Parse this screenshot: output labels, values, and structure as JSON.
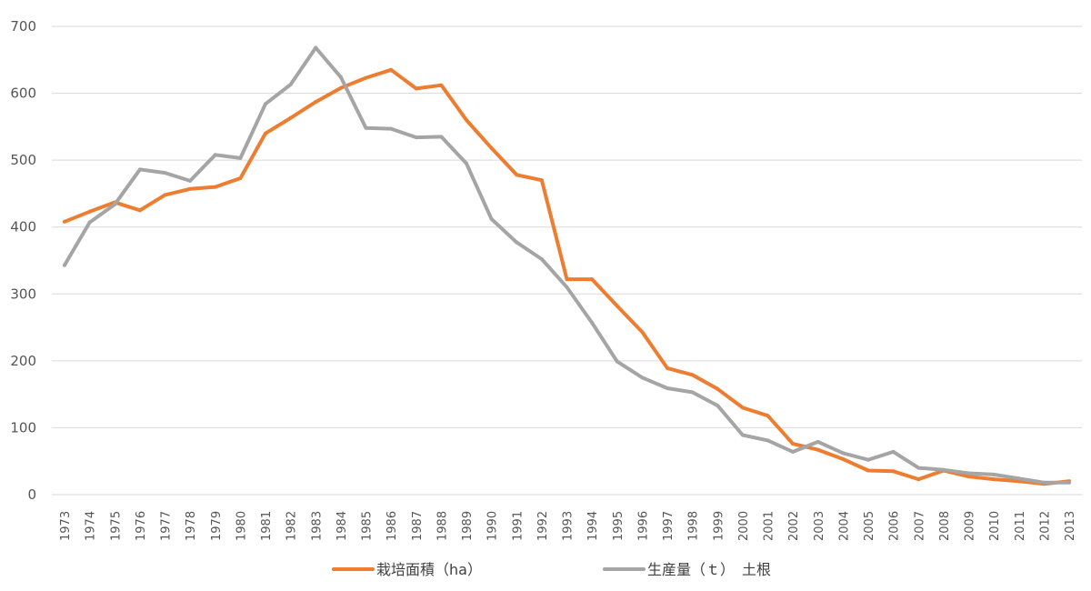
{
  "chart_data": {
    "type": "line",
    "title": "",
    "xlabel": "",
    "ylabel": "",
    "ylim": [
      0,
      700
    ],
    "yticks": [
      "0",
      "100",
      "200",
      "300",
      "400",
      "500",
      "600",
      "700"
    ],
    "categories": [
      "1973",
      "1974",
      "1975",
      "1976",
      "1977",
      "1978",
      "1979",
      "1980",
      "1981",
      "1982",
      "1983",
      "1984",
      "1985",
      "1986",
      "1987",
      "1988",
      "1989",
      "1990",
      "1991",
      "1992",
      "1993",
      "1994",
      "1995",
      "1996",
      "1997",
      "1998",
      "1999",
      "2000",
      "2001",
      "2002",
      "2003",
      "2004",
      "2005",
      "2006",
      "2007",
      "2008",
      "2009",
      "2010",
      "2011",
      "2012",
      "2013"
    ],
    "grid": true,
    "legend_position": "bottom",
    "series": [
      {
        "name": "栽培面積（ha）",
        "color": "#ED7D31",
        "values": [
          408,
          423,
          437,
          425,
          448,
          457,
          460,
          473,
          540,
          563,
          587,
          608,
          623,
          635,
          607,
          612,
          560,
          518,
          478,
          470,
          322,
          322,
          282,
          243,
          189,
          179,
          158,
          130,
          118,
          76,
          67,
          53,
          36,
          35,
          23,
          36,
          27,
          23,
          20,
          16,
          20
        ]
      },
      {
        "name": "生産量（ｔ）　土根",
        "color": "#A5A5A5",
        "values": [
          343,
          407,
          434,
          486,
          481,
          469,
          508,
          503,
          584,
          613,
          668,
          624,
          548,
          547,
          534,
          535,
          495,
          412,
          377,
          352,
          310,
          257,
          199,
          175,
          159,
          153,
          133,
          89,
          81,
          64,
          79,
          62,
          52,
          64,
          40,
          37,
          32,
          30,
          24,
          18,
          18
        ]
      }
    ]
  }
}
